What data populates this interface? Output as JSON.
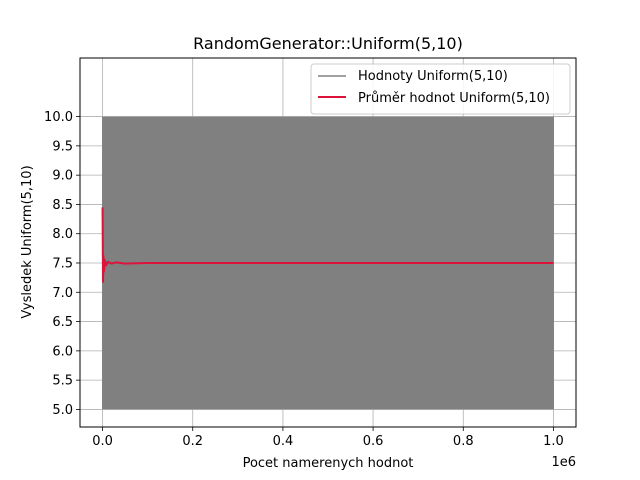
{
  "chart_data": {
    "type": "line",
    "title": "RandomGenerator::Uniform(5,10)",
    "xlabel": "Pocet namerenych hodnot",
    "ylabel": "Vysledek Uniform(5,10)",
    "x_offset_label": "1e6",
    "xlim": [
      -50000,
      1050000
    ],
    "ylim": [
      4.7,
      11.0
    ],
    "x_ticks": [
      0,
      200000,
      400000,
      600000,
      800000,
      1000000
    ],
    "x_tick_labels": [
      "0.0",
      "0.2",
      "0.4",
      "0.6",
      "0.8",
      "1.0"
    ],
    "y_ticks": [
      5.0,
      5.5,
      6.0,
      6.5,
      7.0,
      7.5,
      8.0,
      8.5,
      9.0,
      9.5,
      10.0
    ],
    "y_tick_labels": [
      "5.0",
      "5.5",
      "6.0",
      "6.5",
      "7.0",
      "7.5",
      "8.0",
      "8.5",
      "9.0",
      "9.5",
      "10.0"
    ],
    "grid": true,
    "legend_position": "top-right",
    "series": [
      {
        "name": "Hodnoty Uniform(5,10)",
        "color": "#808080",
        "x_range": [
          0,
          1000000
        ],
        "y_range": [
          5.0,
          10.0
        ],
        "display": "dense-band"
      },
      {
        "name": "Průměr hodnot Uniform(5,10)",
        "color": "#dc143c",
        "x": [
          0,
          1000,
          2000,
          3000,
          5000,
          8000,
          12000,
          20000,
          30000,
          50000,
          100000,
          200000,
          400000,
          600000,
          800000,
          1000000
        ],
        "y": [
          8.45,
          7.18,
          7.62,
          7.35,
          7.55,
          7.46,
          7.52,
          7.49,
          7.51,
          7.49,
          7.5,
          7.5,
          7.5,
          7.5,
          7.5,
          7.5
        ]
      }
    ]
  }
}
